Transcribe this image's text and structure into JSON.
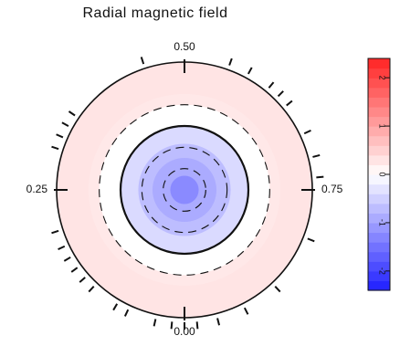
{
  "chart_data": {
    "type": "polar-map",
    "title": "Radial magnetic field",
    "phase_labels": [
      "0.00",
      "0.25",
      "0.50",
      "0.75"
    ],
    "phase_positions": [
      0.0,
      0.25,
      0.5,
      0.75
    ],
    "latitude_circles_deg": [
      -30,
      0,
      30,
      60
    ],
    "equator_style": "solid",
    "latitude_style": "dashed",
    "observation_phases": [
      0.0,
      0.015,
      0.035,
      0.07,
      0.085,
      0.12,
      0.135,
      0.15,
      0.165,
      0.18,
      0.2,
      0.3,
      0.315,
      0.33,
      0.345,
      0.45,
      0.555,
      0.58,
      0.61,
      0.625,
      0.64,
      0.68,
      0.71,
      0.735,
      0.81,
      0.88,
      0.925,
      0.96,
      0.985
    ],
    "field_map_kG": [
      {
        "latitude_range_deg": [
          -90,
          -45
        ],
        "value": 0.3
      },
      {
        "latitude_range_deg": [
          -45,
          -30
        ],
        "value": 0.25
      },
      {
        "latitude_range_deg": [
          -30,
          -15
        ],
        "value": 0.0
      },
      {
        "latitude_range_deg": [
          -15,
          0
        ],
        "value": 0.0
      },
      {
        "latitude_range_deg": [
          0,
          25
        ],
        "value": -0.4
      },
      {
        "latitude_range_deg": [
          25,
          45
        ],
        "value": -0.7
      },
      {
        "latitude_range_deg": [
          45,
          70
        ],
        "value": -0.9
      },
      {
        "latitude_range_deg": [
          70,
          90
        ],
        "value": -1.25
      }
    ],
    "colorbar": {
      "ticks": [
        -2,
        -1,
        0,
        1,
        2
      ],
      "range": [
        -2.4,
        2.4
      ],
      "levels": 24,
      "colormap": "blue-white-red",
      "orientation": "vertical",
      "tick_labels_rotated": true
    }
  }
}
